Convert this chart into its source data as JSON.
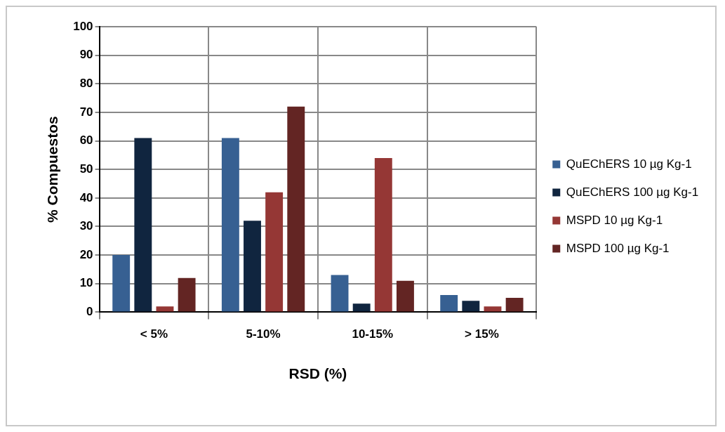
{
  "chart_data": {
    "type": "bar",
    "xlabel": "RSD (%)",
    "ylabel": "% Compuestos",
    "categories": [
      "< 5%",
      "5-10%",
      "10-15%",
      "> 15%"
    ],
    "series": [
      {
        "name": "QuEChERS 10 µg Kg-1",
        "color": "#376092",
        "values": [
          20,
          61,
          13,
          6
        ]
      },
      {
        "name": "QuEChERS 100 µg Kg-1",
        "color": "#10253f",
        "values": [
          61,
          32,
          3,
          4
        ]
      },
      {
        "name": "MSPD 10 µg Kg-1",
        "color": "#953735",
        "values": [
          2,
          42,
          54,
          2
        ]
      },
      {
        "name": "MSPD 100 µg Kg-1",
        "color": "#632523",
        "values": [
          12,
          72,
          11,
          5
        ]
      }
    ],
    "ylim": [
      0,
      100
    ],
    "yticks": [
      0,
      10,
      20,
      30,
      40,
      50,
      60,
      70,
      80,
      90,
      100
    ],
    "grid": true,
    "legend": "right"
  }
}
